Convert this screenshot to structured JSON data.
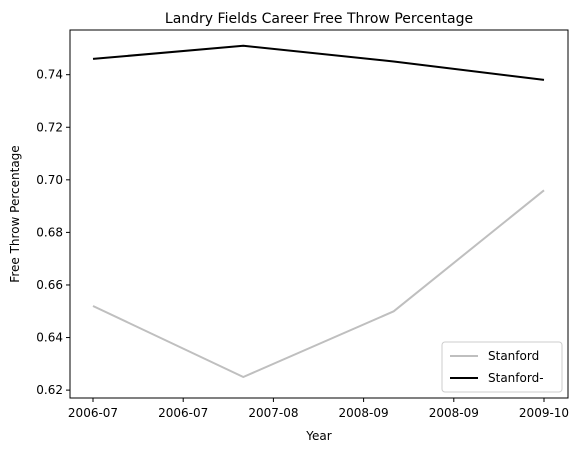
{
  "chart_data": {
    "type": "line",
    "title": "Landry Fields Career Free Throw Percentage",
    "xlabel": "Year",
    "ylabel": "Free Throw Percentage",
    "x_tick_labels": [
      "2006-07",
      "2006-07",
      "2007-08",
      "2008-09",
      "2008-09",
      "2009-10"
    ],
    "x_points": [
      "2006-07",
      "2007-08",
      "2008-09",
      "2009-10"
    ],
    "yticks": [
      0.62,
      0.64,
      0.66,
      0.68,
      0.7,
      0.72,
      0.74
    ],
    "ylim": [
      0.617,
      0.757
    ],
    "grid": false,
    "legend_position": "bottom-right",
    "series": [
      {
        "name": "Stanford",
        "values": [
          0.652,
          0.625,
          0.65,
          0.696
        ],
        "color": "#bfbfbf"
      },
      {
        "name": "Stanford-",
        "values": [
          0.746,
          0.751,
          0.745,
          0.738
        ],
        "color": "#000000"
      }
    ]
  }
}
